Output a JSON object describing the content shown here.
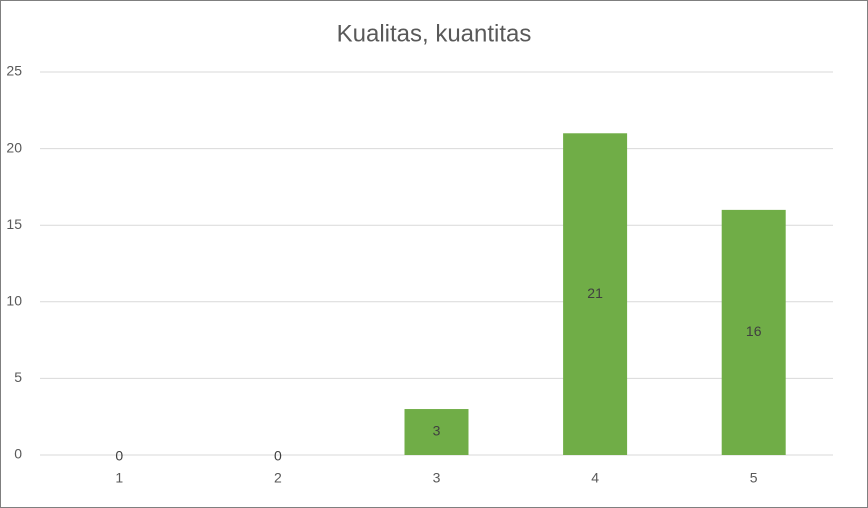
{
  "chart_data": {
    "type": "bar",
    "title": "Kualitas, kuantitas",
    "categories": [
      "1",
      "2",
      "3",
      "4",
      "5"
    ],
    "values": [
      0,
      0,
      3,
      21,
      16
    ],
    "color": "#70ad47",
    "ylim": [
      0,
      25
    ],
    "yticks": [
      0,
      5,
      10,
      15,
      20,
      25
    ],
    "grid": true,
    "data_labels": true
  }
}
